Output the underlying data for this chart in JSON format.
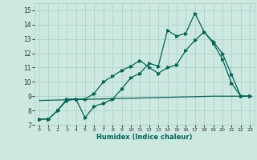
{
  "xlabel": "Humidex (Indice chaleur)",
  "xlim": [
    -0.5,
    23.5
  ],
  "ylim": [
    7,
    15.5
  ],
  "yticks": [
    7,
    8,
    9,
    10,
    11,
    12,
    13,
    14,
    15
  ],
  "xticks": [
    0,
    1,
    2,
    3,
    4,
    5,
    6,
    7,
    8,
    9,
    10,
    11,
    12,
    13,
    14,
    15,
    16,
    17,
    18,
    19,
    20,
    21,
    22,
    23
  ],
  "bg_color": "#cce8e0",
  "grid_color": "#aacfc8",
  "line_color": "#006655",
  "line1_x": [
    0,
    1,
    2,
    3,
    4,
    5,
    6,
    7,
    8,
    9,
    10,
    11,
    12,
    13,
    14,
    15,
    16,
    17,
    18,
    19,
    20,
    21,
    22,
    23
  ],
  "line1_y": [
    7.4,
    7.4,
    8.0,
    8.8,
    8.8,
    7.5,
    8.3,
    8.5,
    8.8,
    9.5,
    10.3,
    10.6,
    11.3,
    11.1,
    13.6,
    13.2,
    13.4,
    14.8,
    13.5,
    12.7,
    11.6,
    9.9,
    9.0,
    9.0
  ],
  "line2_x": [
    0,
    1,
    2,
    3,
    4,
    5,
    6,
    7,
    8,
    9,
    10,
    11,
    12,
    13,
    14,
    15,
    16,
    17,
    18,
    19,
    20,
    21,
    22,
    23
  ],
  "line2_y": [
    7.4,
    7.4,
    8.0,
    8.7,
    8.8,
    8.8,
    9.2,
    10.0,
    10.4,
    10.8,
    11.1,
    11.5,
    11.0,
    10.6,
    11.0,
    11.2,
    12.2,
    12.9,
    13.5,
    12.8,
    12.0,
    10.5,
    9.0,
    9.0
  ],
  "line3_x": [
    0,
    19,
    23
  ],
  "line3_y": [
    8.7,
    9.0,
    9.0
  ]
}
